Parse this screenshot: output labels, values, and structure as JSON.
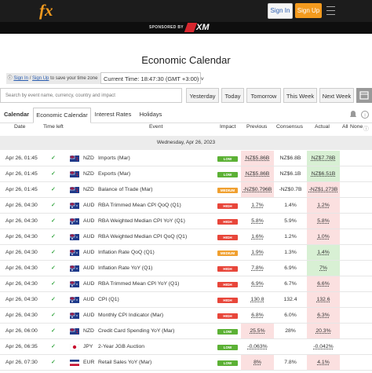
{
  "header": {
    "logo": "fx",
    "sign_in": "Sign In",
    "sign_up": "Sign Up"
  },
  "sponsor": {
    "label": "SPONSORED BY",
    "brand": "XM"
  },
  "title": "Economic Calendar",
  "notice": {
    "sign_in": "Sign In",
    "separator": "/",
    "sign_up": "Sign Up",
    "text": "to save your time zone"
  },
  "current_time": {
    "label": "Current Time:",
    "time": "18:47:30",
    "zone": "(GMT +3:00)"
  },
  "search_placeholder": "Search by event name, currency, country and impact",
  "nav_buttons": [
    "Yesterday",
    "Today",
    "Tomorrow",
    "This Week",
    "Next Week"
  ],
  "tabs": {
    "label": "Calendar",
    "items": [
      "Economic Calendar",
      "Interest Rates",
      "Holidays"
    ]
  },
  "columns": {
    "date": "Date",
    "time_left": "Time left",
    "event": "Event",
    "impact": "Impact",
    "previous": "Previous",
    "consensus": "Consensus",
    "actual": "Actual",
    "all": "All",
    "none": "None"
  },
  "calendar": {
    "day": "Wednesday, Apr 26, 2023",
    "impact_colors": {
      "LOW": "#5cb135",
      "MEDIUM": "#f0a030",
      "HIGH": "#e8463a"
    },
    "rows": [
      {
        "date": "Apr 26, 01:45",
        "currency": "NZD",
        "event": "Imports (Mar)",
        "impact": "LOW",
        "previous": "NZ$5.86B",
        "previous_color": "#fbe0e0",
        "consensus": "NZ$6.8B",
        "actual": "NZ$7.78B",
        "actual_color": "#d8f0d4"
      },
      {
        "date": "Apr 26, 01:45",
        "currency": "NZD",
        "event": "Exports (Mar)",
        "impact": "LOW",
        "previous": "NZ$5.86B",
        "previous_color": "#fbe0e0",
        "consensus": "NZ$6.1B",
        "actual": "NZ$6.51B",
        "actual_color": "#d8f0d4"
      },
      {
        "date": "Apr 26, 01:45",
        "currency": "NZD",
        "event": "Balance of Trade (Mar)",
        "impact": "MEDIUM",
        "previous": "-NZ$0.796B",
        "previous_color": "#fbe0e0",
        "consensus": "-NZ$0.7B",
        "actual": "-NZ$1.273B",
        "actual_color": "#fbe0e0"
      },
      {
        "date": "Apr 26, 04:30",
        "currency": "AUD",
        "event": "RBA Trimmed Mean CPI QoQ (Q1)",
        "impact": "HIGH",
        "previous": "1.7%",
        "consensus": "1.4%",
        "actual": "1.2%",
        "actual_color": "#fbe0e0"
      },
      {
        "date": "Apr 26, 04:30",
        "currency": "AUD",
        "event": "RBA Weighted Median CPI YoY (Q1)",
        "impact": "HIGH",
        "previous": "5.8%",
        "consensus": "5.9%",
        "actual": "5.8%",
        "actual_color": "#fbe0e0"
      },
      {
        "date": "Apr 26, 04:30",
        "currency": "AUD",
        "event": "RBA Weighted Median CPI QoQ (Q1)",
        "impact": "HIGH",
        "previous": "1.6%",
        "consensus": "1.2%",
        "actual": "1.0%",
        "actual_color": "#fbe0e0"
      },
      {
        "date": "Apr 26, 04:30",
        "currency": "AUD",
        "event": "Inflation Rate QoQ (Q1)",
        "impact": "MEDIUM",
        "previous": "1.9%",
        "consensus": "1.3%",
        "actual": "1.4%",
        "actual_color": "#d8f0d4"
      },
      {
        "date": "Apr 26, 04:30",
        "currency": "AUD",
        "event": "Inflation Rate YoY (Q1)",
        "impact": "HIGH",
        "previous": "7.8%",
        "consensus": "6.9%",
        "actual": "7%",
        "actual_color": "#d8f0d4"
      },
      {
        "date": "Apr 26, 04:30",
        "currency": "AUD",
        "event": "RBA Trimmed Mean CPI YoY (Q1)",
        "impact": "HIGH",
        "previous": "6.9%",
        "consensus": "6.7%",
        "actual": "6.6%",
        "actual_color": "#fbe0e0"
      },
      {
        "date": "Apr 26, 04:30",
        "currency": "AUD",
        "event": "CPI (Q1)",
        "impact": "HIGH",
        "previous": "130.8",
        "consensus": "132.4",
        "actual": "132.6",
        "actual_color": "#fbe0e0"
      },
      {
        "date": "Apr 26, 04:30",
        "currency": "AUD",
        "event": "Monthly CPI Indicator (Mar)",
        "impact": "HIGH",
        "previous": "6.8%",
        "consensus": "6.0%",
        "actual": "6.3%",
        "actual_color": "#fbe0e0"
      },
      {
        "date": "Apr 26, 06:00",
        "currency": "NZD",
        "event": "Credit Card Spending YoY (Mar)",
        "impact": "LOW",
        "previous": "25.5%",
        "previous_color": "#fbe0e0",
        "consensus": "28%",
        "actual": "20.3%",
        "actual_color": "#fbe0e0"
      },
      {
        "date": "Apr 26, 06:35",
        "currency": "JPY",
        "event": "2-Year JGB Auction",
        "impact": "LOW",
        "previous": "-0.063%",
        "actual": "-0.042%"
      },
      {
        "date": "Apr 26, 07:30",
        "currency": "EUR",
        "event": "Retail Sales YoY (Mar)",
        "impact": "LOW",
        "previous": "8%",
        "previous_color": "#fbe0e0",
        "consensus": "7.8%",
        "actual": "4.1%",
        "actual_color": "#fbe0e0"
      }
    ]
  }
}
